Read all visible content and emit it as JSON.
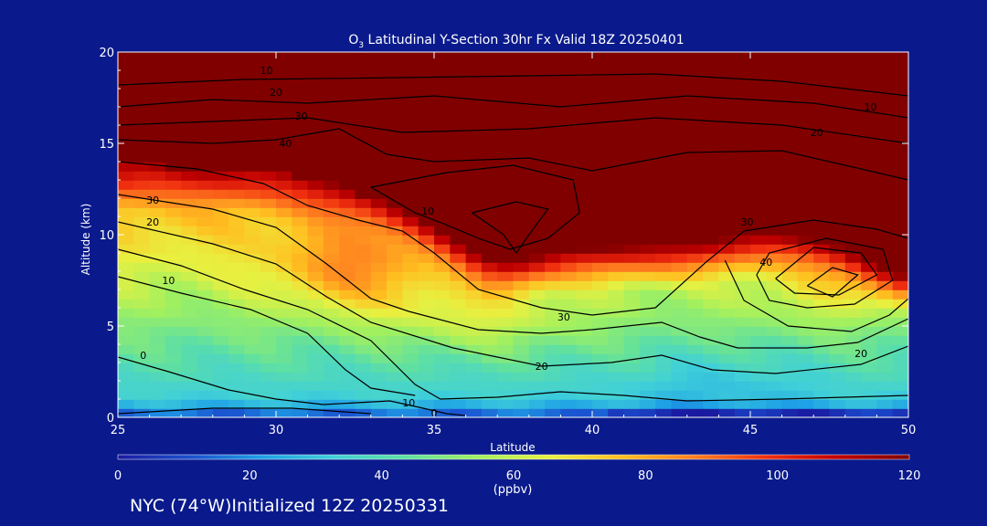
{
  "chart_data": {
    "type": "heatmap",
    "title_prefix": "O",
    "title_sub": "3",
    "title_rest": " Latitudinal Y-Section 30hr  Fx Valid 18Z 20250401",
    "xlabel": "Latitude",
    "ylabel": "Altitude (km)",
    "xlim": [
      25,
      50
    ],
    "ylim": [
      0,
      20
    ],
    "x_ticks": [
      "25",
      "30",
      "35",
      "40",
      "45",
      "50"
    ],
    "y_ticks": [
      "0",
      "5",
      "10",
      "15",
      "20"
    ],
    "colorbar": {
      "label": "(ppbv)",
      "range": [
        0,
        120
      ],
      "ticks": [
        "0",
        "20",
        "40",
        "60",
        "80",
        "100",
        "120"
      ],
      "colors": [
        "#1a1aa0",
        "#1a4fd0",
        "#1ea0e6",
        "#40d0d8",
        "#60e0a0",
        "#a0f060",
        "#e8f040",
        "#ffc020",
        "#ff8020",
        "#f03010",
        "#c00000",
        "#800000"
      ]
    },
    "contour_levels": [
      0,
      10,
      20,
      30,
      40
    ],
    "contour_labels": [
      {
        "text": "10",
        "lat": 34.2,
        "alt": 0.8
      },
      {
        "text": "0",
        "lat": 35.0,
        "alt": 0.25
      },
      {
        "text": "20",
        "lat": 38.4,
        "alt": 2.8
      },
      {
        "text": "30",
        "lat": 39.1,
        "alt": 5.5
      },
      {
        "text": "40",
        "lat": 30.3,
        "alt": 15.0
      },
      {
        "text": "30",
        "lat": 30.8,
        "alt": 16.5
      },
      {
        "text": "20",
        "lat": 30.0,
        "alt": 17.8
      },
      {
        "text": "10",
        "lat": 29.7,
        "alt": 19.0
      },
      {
        "text": "30",
        "lat": 26.1,
        "alt": 11.9
      },
      {
        "text": "20",
        "lat": 26.1,
        "alt": 10.7
      },
      {
        "text": "10",
        "lat": 26.6,
        "alt": 7.5
      },
      {
        "text": "0",
        "lat": 25.8,
        "alt": 3.4
      },
      {
        "text": "10",
        "lat": 48.8,
        "alt": 17.0
      },
      {
        "text": "20",
        "lat": 47.1,
        "alt": 15.6
      },
      {
        "text": "30",
        "lat": 44.9,
        "alt": 10.7
      },
      {
        "text": "40",
        "lat": 45.5,
        "alt": 8.5
      },
      {
        "text": "20",
        "lat": 48.5,
        "alt": 3.5
      },
      {
        "text": "10",
        "lat": 34.8,
        "alt": 11.3
      }
    ]
  },
  "footer": {
    "text": "NYC (74°W)Initialized 12Z 20250331"
  }
}
